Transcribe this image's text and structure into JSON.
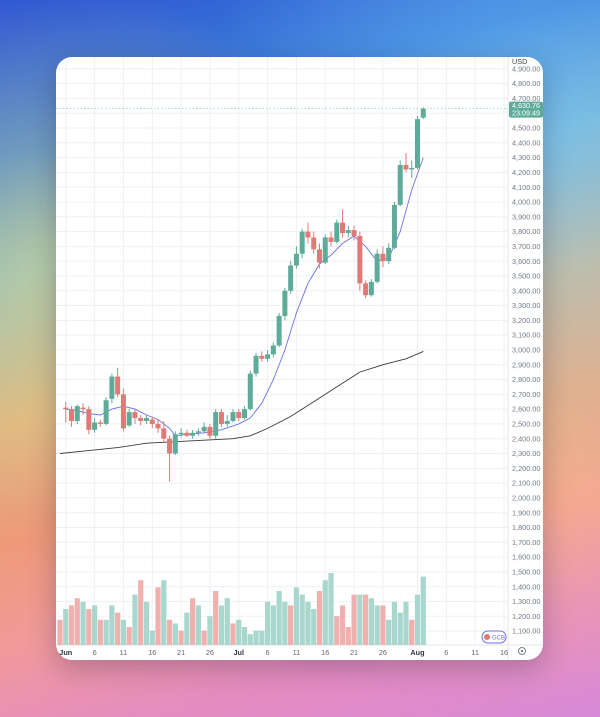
{
  "chart_data": {
    "type": "candlestick",
    "currency": "USD",
    "y_axis_ticks": [
      "4,900.00",
      "4,800.00",
      "4,700.00",
      "4,600.00",
      "4,500.00",
      "4,400.00",
      "4,300.00",
      "4,200.00",
      "4,100.00",
      "4,000.00",
      "3,900.00",
      "3,800.00",
      "3,700.00",
      "3,600.00",
      "3,500.00",
      "3,400.00",
      "3,300.00",
      "3,200.00",
      "3,100.00",
      "3,000.00",
      "2,900.00",
      "2,800.00",
      "2,700.00",
      "2,600.00",
      "2,500.00",
      "2,400.00",
      "2,300.00",
      "2,200.00",
      "2,100.00",
      "2,000.00",
      "1,900.00",
      "1,800.00",
      "1,700.00",
      "1,600.00",
      "1,500.00",
      "1,400.00",
      "1,300.00",
      "1,200.00",
      "1,100.00"
    ],
    "x_axis_ticks": [
      {
        "label": "Jun",
        "day": 1,
        "strong": true
      },
      {
        "label": "6",
        "day": 6
      },
      {
        "label": "11",
        "day": 11
      },
      {
        "label": "16",
        "day": 16
      },
      {
        "label": "21",
        "day": 21
      },
      {
        "label": "26",
        "day": 26
      },
      {
        "label": "Jul",
        "day": 31,
        "strong": true
      },
      {
        "label": "6",
        "day": 36
      },
      {
        "label": "11",
        "day": 41
      },
      {
        "label": "16",
        "day": 46
      },
      {
        "label": "21",
        "day": 51
      },
      {
        "label": "26",
        "day": 56
      },
      {
        "label": "Aug",
        "day": 62,
        "strong": true
      },
      {
        "label": "6",
        "day": 67
      },
      {
        "label": "11",
        "day": 72
      },
      {
        "label": "16",
        "day": 77
      }
    ],
    "y_range": [
      1060,
      5000
    ],
    "last_price": "4,630.76",
    "countdown": "23:09:49",
    "candles": [
      {
        "day": 1,
        "open": 2610,
        "high": 2650,
        "low": 2510,
        "close": 2600
      },
      {
        "day": 2,
        "open": 2600,
        "high": 2620,
        "low": 2480,
        "close": 2520
      },
      {
        "day": 3,
        "open": 2520,
        "high": 2630,
        "low": 2500,
        "close": 2620
      },
      {
        "day": 4,
        "open": 2610,
        "high": 2640,
        "low": 2560,
        "close": 2600
      },
      {
        "day": 5,
        "open": 2600,
        "high": 2620,
        "low": 2430,
        "close": 2460
      },
      {
        "day": 6,
        "open": 2460,
        "high": 2540,
        "low": 2440,
        "close": 2510
      },
      {
        "day": 7,
        "open": 2510,
        "high": 2530,
        "low": 2480,
        "close": 2500
      },
      {
        "day": 8,
        "open": 2500,
        "high": 2680,
        "low": 2490,
        "close": 2660
      },
      {
        "day": 9,
        "open": 2670,
        "high": 2840,
        "low": 2640,
        "close": 2820
      },
      {
        "day": 10,
        "open": 2820,
        "high": 2880,
        "low": 2680,
        "close": 2700
      },
      {
        "day": 11,
        "open": 2700,
        "high": 2740,
        "low": 2450,
        "close": 2470
      },
      {
        "day": 12,
        "open": 2490,
        "high": 2600,
        "low": 2480,
        "close": 2580
      },
      {
        "day": 13,
        "open": 2580,
        "high": 2600,
        "low": 2500,
        "close": 2540
      },
      {
        "day": 14,
        "open": 2540,
        "high": 2560,
        "low": 2490,
        "close": 2520
      },
      {
        "day": 15,
        "open": 2520,
        "high": 2560,
        "low": 2500,
        "close": 2540
      },
      {
        "day": 16,
        "open": 2530,
        "high": 2550,
        "low": 2470,
        "close": 2500
      },
      {
        "day": 17,
        "open": 2500,
        "high": 2530,
        "low": 2440,
        "close": 2470
      },
      {
        "day": 18,
        "open": 2470,
        "high": 2520,
        "low": 2380,
        "close": 2400
      },
      {
        "day": 19,
        "open": 2400,
        "high": 2420,
        "low": 2110,
        "close": 2300
      },
      {
        "day": 20,
        "open": 2300,
        "high": 2450,
        "low": 2290,
        "close": 2430
      },
      {
        "day": 21,
        "open": 2430,
        "high": 2470,
        "low": 2410,
        "close": 2440
      },
      {
        "day": 22,
        "open": 2440,
        "high": 2460,
        "low": 2410,
        "close": 2420
      },
      {
        "day": 23,
        "open": 2420,
        "high": 2460,
        "low": 2400,
        "close": 2440
      },
      {
        "day": 24,
        "open": 2440,
        "high": 2470,
        "low": 2420,
        "close": 2450
      },
      {
        "day": 25,
        "open": 2450,
        "high": 2510,
        "low": 2440,
        "close": 2480
      },
      {
        "day": 26,
        "open": 2480,
        "high": 2500,
        "low": 2390,
        "close": 2420
      },
      {
        "day": 27,
        "open": 2420,
        "high": 2600,
        "low": 2400,
        "close": 2580
      },
      {
        "day": 28,
        "open": 2580,
        "high": 2600,
        "low": 2480,
        "close": 2500
      },
      {
        "day": 29,
        "open": 2500,
        "high": 2560,
        "low": 2480,
        "close": 2520
      },
      {
        "day": 30,
        "open": 2520,
        "high": 2600,
        "low": 2510,
        "close": 2580
      },
      {
        "day": 31,
        "open": 2580,
        "high": 2600,
        "low": 2520,
        "close": 2540
      },
      {
        "day": 32,
        "open": 2540,
        "high": 2620,
        "low": 2530,
        "close": 2600
      },
      {
        "day": 33,
        "open": 2600,
        "high": 2860,
        "low": 2590,
        "close": 2840
      },
      {
        "day": 34,
        "open": 2840,
        "high": 2980,
        "low": 2820,
        "close": 2960
      },
      {
        "day": 35,
        "open": 2960,
        "high": 2990,
        "low": 2920,
        "close": 2940
      },
      {
        "day": 36,
        "open": 2940,
        "high": 3000,
        "low": 2920,
        "close": 2970
      },
      {
        "day": 37,
        "open": 2970,
        "high": 3050,
        "low": 2950,
        "close": 3030
      },
      {
        "day": 38,
        "open": 3030,
        "high": 3250,
        "low": 3020,
        "close": 3230
      },
      {
        "day": 39,
        "open": 3230,
        "high": 3420,
        "low": 3200,
        "close": 3400
      },
      {
        "day": 40,
        "open": 3400,
        "high": 3600,
        "low": 3380,
        "close": 3570
      },
      {
        "day": 41,
        "open": 3570,
        "high": 3700,
        "low": 3550,
        "close": 3650
      },
      {
        "day": 42,
        "open": 3650,
        "high": 3820,
        "low": 3620,
        "close": 3800
      },
      {
        "day": 43,
        "open": 3800,
        "high": 3860,
        "low": 3720,
        "close": 3760
      },
      {
        "day": 44,
        "open": 3760,
        "high": 3800,
        "low": 3650,
        "close": 3680
      },
      {
        "day": 45,
        "open": 3680,
        "high": 3720,
        "low": 3550,
        "close": 3590
      },
      {
        "day": 46,
        "open": 3590,
        "high": 3780,
        "low": 3580,
        "close": 3760
      },
      {
        "day": 47,
        "open": 3760,
        "high": 3800,
        "low": 3700,
        "close": 3730
      },
      {
        "day": 48,
        "open": 3730,
        "high": 3880,
        "low": 3720,
        "close": 3860
      },
      {
        "day": 49,
        "open": 3860,
        "high": 3950,
        "low": 3760,
        "close": 3790
      },
      {
        "day": 50,
        "open": 3790,
        "high": 3840,
        "low": 3760,
        "close": 3810
      },
      {
        "day": 51,
        "open": 3810,
        "high": 3840,
        "low": 3740,
        "close": 3770
      },
      {
        "day": 52,
        "open": 3770,
        "high": 3800,
        "low": 3400,
        "close": 3450
      },
      {
        "day": 53,
        "open": 3450,
        "high": 3470,
        "low": 3350,
        "close": 3370
      },
      {
        "day": 54,
        "open": 3370,
        "high": 3480,
        "low": 3360,
        "close": 3460
      },
      {
        "day": 55,
        "open": 3460,
        "high": 3680,
        "low": 3450,
        "close": 3650
      },
      {
        "day": 56,
        "open": 3650,
        "high": 3700,
        "low": 3560,
        "close": 3600
      },
      {
        "day": 57,
        "open": 3600,
        "high": 3720,
        "low": 3580,
        "close": 3690
      },
      {
        "day": 58,
        "open": 3690,
        "high": 4000,
        "low": 3680,
        "close": 3980
      },
      {
        "day": 59,
        "open": 3980,
        "high": 4280,
        "low": 3970,
        "close": 4250
      },
      {
        "day": 60,
        "open": 4250,
        "high": 4330,
        "low": 4200,
        "close": 4220
      },
      {
        "day": 61,
        "open": 4220,
        "high": 4280,
        "low": 4160,
        "close": 4230
      },
      {
        "day": 62,
        "open": 4230,
        "high": 4580,
        "low": 4220,
        "close": 4560
      },
      {
        "day": 63,
        "open": 4570,
        "high": 4640,
        "low": 4560,
        "close": 4630
      }
    ],
    "ma_fast": [
      [
        1,
        2600
      ],
      [
        3,
        2590
      ],
      [
        5,
        2570
      ],
      [
        7,
        2560
      ],
      [
        9,
        2600
      ],
      [
        11,
        2620
      ],
      [
        13,
        2600
      ],
      [
        15,
        2560
      ],
      [
        17,
        2530
      ],
      [
        19,
        2470
      ],
      [
        20,
        2420
      ],
      [
        22,
        2430
      ],
      [
        25,
        2440
      ],
      [
        28,
        2460
      ],
      [
        31,
        2500
      ],
      [
        33,
        2540
      ],
      [
        35,
        2640
      ],
      [
        37,
        2800
      ],
      [
        39,
        3000
      ],
      [
        41,
        3250
      ],
      [
        43,
        3450
      ],
      [
        45,
        3580
      ],
      [
        47,
        3640
      ],
      [
        49,
        3720
      ],
      [
        51,
        3770
      ],
      [
        53,
        3700
      ],
      [
        55,
        3600
      ],
      [
        57,
        3620
      ],
      [
        59,
        3800
      ],
      [
        61,
        4080
      ],
      [
        63,
        4300
      ]
    ],
    "ma_slow": [
      [
        0,
        2300
      ],
      [
        5,
        2320
      ],
      [
        10,
        2340
      ],
      [
        15,
        2370
      ],
      [
        20,
        2380
      ],
      [
        25,
        2390
      ],
      [
        30,
        2400
      ],
      [
        33,
        2420
      ],
      [
        36,
        2470
      ],
      [
        40,
        2550
      ],
      [
        44,
        2650
      ],
      [
        48,
        2750
      ],
      [
        52,
        2850
      ],
      [
        56,
        2900
      ],
      [
        60,
        2940
      ],
      [
        63,
        2990
      ]
    ],
    "volume_direction": [
      "down",
      "up",
      "down",
      "down",
      "up",
      "down",
      "up",
      "down",
      "up",
      "up",
      "down",
      "up",
      "down",
      "up",
      "down",
      "up",
      "up",
      "down",
      "up",
      "down",
      "up",
      "down",
      "up",
      "down",
      "up",
      "down",
      "up",
      "down",
      "up",
      "up",
      "down",
      "up",
      "up",
      "up",
      "up",
      "up",
      "up",
      "up",
      "up",
      "up",
      "down",
      "up",
      "up",
      "up",
      "up",
      "down",
      "up",
      "up",
      "down",
      "down",
      "down",
      "down",
      "up",
      "down",
      "up",
      "up",
      "down",
      "up",
      "up",
      "up",
      "up",
      "down",
      "up",
      "up"
    ],
    "volume_rel": [
      0.35,
      0.5,
      0.55,
      0.65,
      0.6,
      0.5,
      0.55,
      0.35,
      0.35,
      0.55,
      0.45,
      0.35,
      0.25,
      0.7,
      0.9,
      0.6,
      0.2,
      0.8,
      0.9,
      0.35,
      0.3,
      0.2,
      0.45,
      0.65,
      0.55,
      0.2,
      0.4,
      0.75,
      0.55,
      0.65,
      0.3,
      0.35,
      0.25,
      0.15,
      0.2,
      0.2,
      0.6,
      0.55,
      0.75,
      0.6,
      0.55,
      0.8,
      0.7,
      0.6,
      0.5,
      0.75,
      0.9,
      1.0,
      0.4,
      0.55,
      0.25,
      0.7,
      0.7,
      0.7,
      0.65,
      0.55,
      0.55,
      0.35,
      0.6,
      0.45,
      0.6,
      0.35,
      0.7,
      0.95
    ]
  },
  "colors": {
    "up": "#5eab9a",
    "down": "#e07a77",
    "up_volume": "#a9d6cd",
    "down_volume": "#f0b1ae",
    "ma_fast": "#6b6fe0",
    "ma_slow": "#3a3a3a",
    "grid": "#eef1f4",
    "price_label_bg": "#5eab9a"
  },
  "badge_text": "GCB"
}
